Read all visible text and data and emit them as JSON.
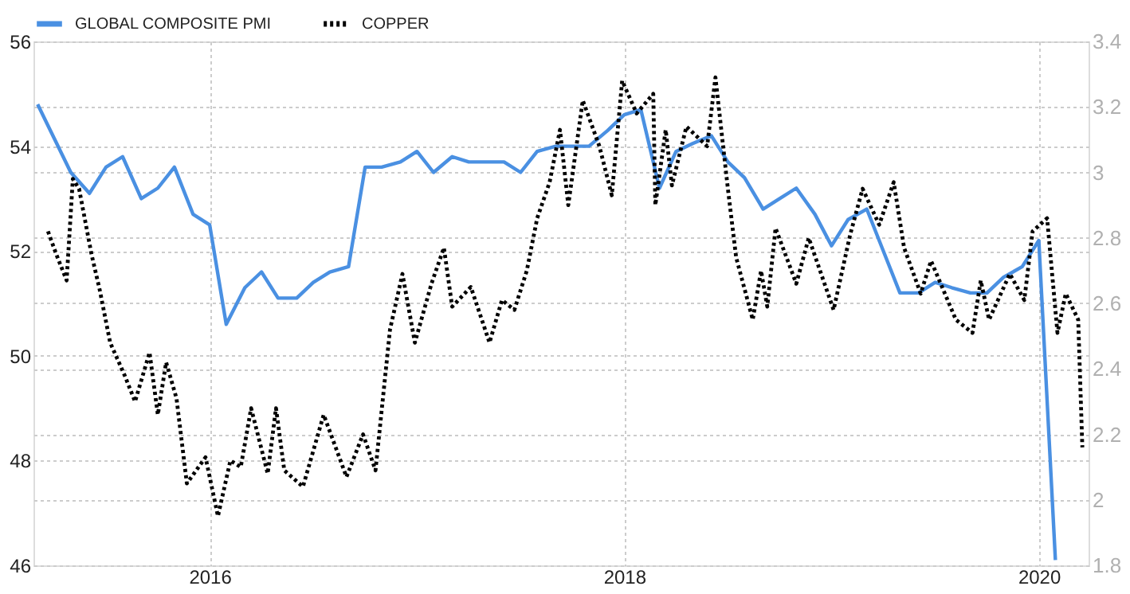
{
  "chart_data": {
    "type": "line",
    "xlim": [
      2015.15,
      2020.24
    ],
    "xticks": [
      2016,
      2018,
      2020
    ],
    "ylim": [
      46,
      56
    ],
    "yticks": [
      46,
      48,
      50,
      52,
      54,
      56
    ],
    "y2lim": [
      1.8,
      3.4
    ],
    "y2ticks": [
      1.8,
      2,
      2.2,
      2.4,
      2.6,
      2.8,
      3,
      3.2,
      3.4
    ],
    "grid": true,
    "legend": "top left",
    "series": [
      {
        "name": "GLOBAL COMPOSITE PMI",
        "color": "#4a90e2",
        "line_style": "solid",
        "x": [
          2015.17,
          2015.25,
          2015.33,
          2015.42,
          2015.5,
          2015.58,
          2015.67,
          2015.75,
          2015.83,
          2015.92,
          2016.0,
          2016.08,
          2016.17,
          2016.25,
          2016.33,
          2016.42,
          2016.5,
          2016.58,
          2016.67,
          2016.75,
          2016.83,
          2016.92,
          2017.0,
          2017.08,
          2017.17,
          2017.25,
          2017.33,
          2017.42,
          2017.5,
          2017.58,
          2017.67,
          2017.75,
          2017.83,
          2017.92,
          2018.0,
          2018.08,
          2018.17,
          2018.25,
          2018.33,
          2018.42,
          2018.5,
          2018.58,
          2018.67,
          2018.75,
          2018.83,
          2018.92,
          2019.0,
          2019.08,
          2019.17,
          2019.25,
          2019.33,
          2019.42,
          2019.5,
          2019.58,
          2019.67,
          2019.75,
          2019.83,
          2019.92,
          2020.0,
          2020.08
        ],
        "values": [
          54.8,
          54.15,
          53.5,
          53.1,
          53.6,
          53.8,
          53.0,
          53.2,
          53.6,
          52.7,
          52.5,
          50.6,
          51.3,
          51.6,
          51.1,
          51.1,
          51.4,
          51.6,
          51.7,
          53.6,
          53.6,
          53.7,
          53.9,
          53.5,
          53.8,
          53.7,
          53.7,
          53.7,
          53.5,
          53.9,
          54.0,
          54.0,
          54.0,
          54.3,
          54.6,
          54.7,
          53.2,
          53.9,
          54.05,
          54.2,
          53.7,
          53.4,
          52.8,
          53.0,
          53.2,
          52.7,
          52.1,
          52.6,
          52.8,
          52.0,
          51.2,
          51.2,
          51.4,
          51.3,
          51.2,
          51.2,
          51.5,
          51.7,
          52.2,
          46.1
        ]
      },
      {
        "name": "COPPER",
        "color": "#000000",
        "line_style": "dotted",
        "axis": "y2",
        "x": [
          2015.22,
          2015.26,
          2015.31,
          2015.34,
          2015.37,
          2015.43,
          2015.47,
          2015.52,
          2015.59,
          2015.64,
          2015.71,
          2015.75,
          2015.79,
          2015.84,
          2015.89,
          2015.98,
          2016.04,
          2016.1,
          2016.15,
          2016.2,
          2016.28,
          2016.32,
          2016.36,
          2016.45,
          2016.55,
          2016.66,
          2016.74,
          2016.8,
          2016.87,
          2016.93,
          2016.99,
          2017.07,
          2017.13,
          2017.17,
          2017.26,
          2017.35,
          2017.41,
          2017.47,
          2017.53,
          2017.58,
          2017.64,
          2017.69,
          2017.73,
          2017.8,
          2017.88,
          2017.94,
          2017.99,
          2018.06,
          2018.14,
          2018.15,
          2018.2,
          2018.23,
          2018.3,
          2018.4,
          2018.44,
          2018.5,
          2018.54,
          2018.62,
          2018.66,
          2018.69,
          2018.73,
          2018.83,
          2018.89,
          2019.01,
          2019.09,
          2019.15,
          2019.23,
          2019.3,
          2019.35,
          2019.43,
          2019.48,
          2019.6,
          2019.68,
          2019.72,
          2019.76,
          2019.86,
          2019.93,
          2019.97,
          2020.04,
          2020.09,
          2020.13,
          2020.19,
          2020.21
        ],
        "values": [
          2.82,
          2.75,
          2.67,
          2.98,
          2.95,
          2.75,
          2.64,
          2.48,
          2.38,
          2.3,
          2.45,
          2.26,
          2.42,
          2.31,
          2.05,
          2.13,
          1.95,
          2.12,
          2.1,
          2.28,
          2.08,
          2.28,
          2.09,
          2.04,
          2.26,
          2.07,
          2.2,
          2.09,
          2.52,
          2.69,
          2.48,
          2.66,
          2.77,
          2.59,
          2.65,
          2.48,
          2.61,
          2.58,
          2.7,
          2.86,
          2.97,
          3.13,
          2.9,
          3.22,
          3.08,
          2.93,
          3.28,
          3.18,
          3.24,
          2.9,
          3.13,
          2.96,
          3.14,
          3.08,
          3.29,
          2.95,
          2.74,
          2.55,
          2.7,
          2.59,
          2.83,
          2.66,
          2.8,
          2.58,
          2.81,
          2.95,
          2.84,
          2.97,
          2.77,
          2.63,
          2.73,
          2.55,
          2.51,
          2.67,
          2.55,
          2.69,
          2.61,
          2.82,
          2.86,
          2.51,
          2.63,
          2.55,
          2.16
        ]
      }
    ]
  }
}
